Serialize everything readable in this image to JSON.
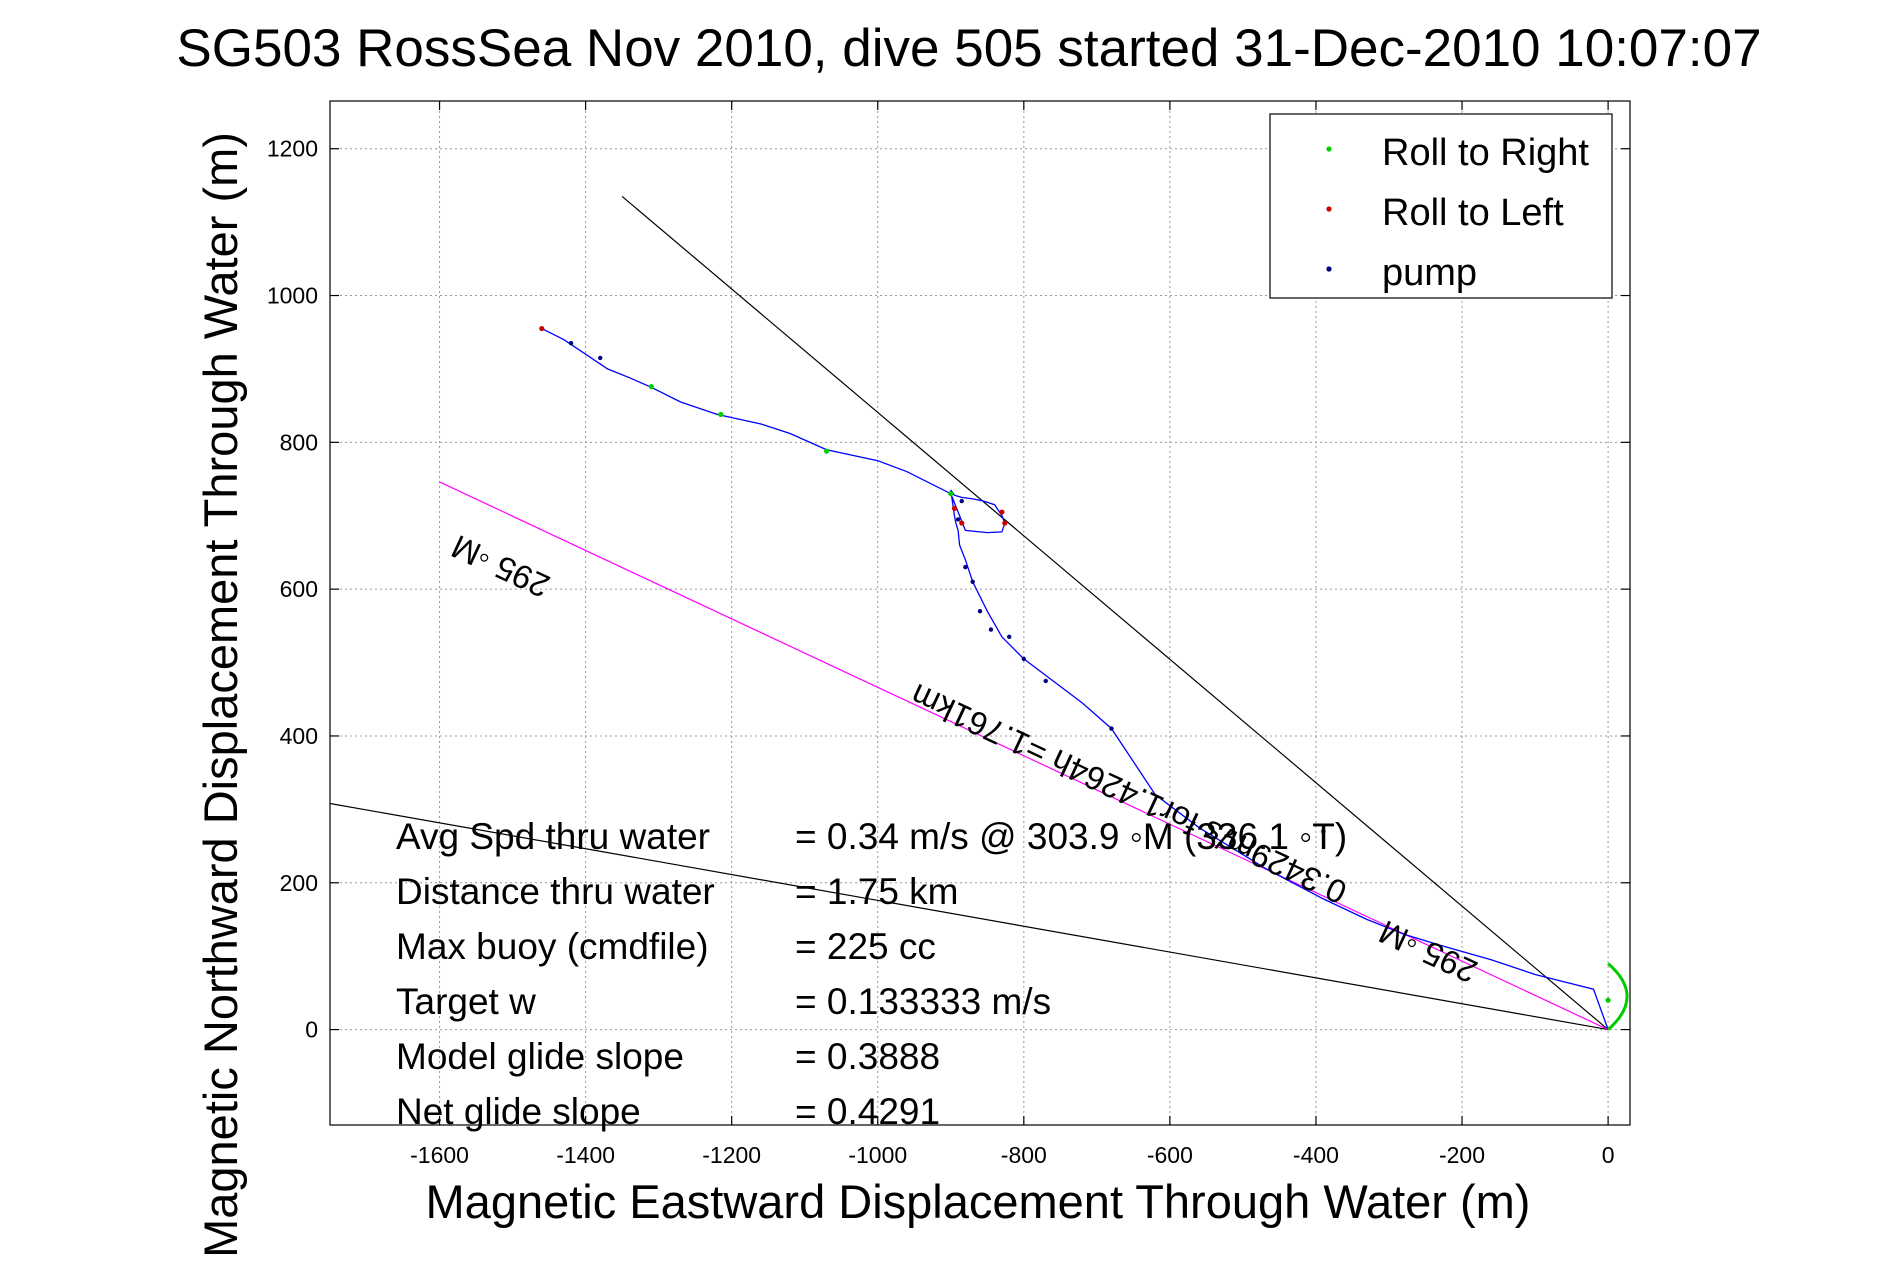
{
  "chart_data": {
    "type": "line",
    "title": "SG503 RossSea Nov 2010, dive 505 started 31-Dec-2010 10:07:07",
    "xlabel": "Magnetic Eastward Displacement Through Water (m)",
    "ylabel": "Magnetic Northward Displacement Through Water (m)",
    "xlim": [
      -1750,
      30
    ],
    "ylim": [
      -130,
      1265
    ],
    "xticks": [
      -1600,
      -1400,
      -1200,
      -1000,
      -800,
      -600,
      -400,
      -200,
      0
    ],
    "yticks": [
      0,
      200,
      400,
      600,
      800,
      1000,
      1200
    ],
    "grid": true,
    "legend_position": "top-right",
    "legend": [
      {
        "label": "Roll to Right",
        "color": "#00cc00"
      },
      {
        "label": "Roll to Left",
        "color": "#cc0000"
      },
      {
        "label": "pump",
        "color": "#000080"
      }
    ],
    "track": {
      "color": "#0000ff",
      "x": [
        0,
        -20,
        -60,
        -100,
        -160,
        -230,
        -280,
        -330,
        -390,
        -470,
        -560,
        -620,
        -680,
        -720,
        -760,
        -800,
        -830,
        -850,
        -870,
        -880,
        -888,
        -890,
        -893,
        -895,
        -900,
        -895,
        -885,
        -870,
        -855,
        -840,
        -830,
        -826,
        -830,
        -850,
        -880,
        -900,
        -960,
        -1000,
        -1070,
        -1120,
        -1160,
        -1220,
        -1270,
        -1310,
        -1340,
        -1370,
        -1400,
        -1430,
        -1460
      ],
      "y": [
        0,
        55,
        65,
        75,
        95,
        115,
        130,
        150,
        178,
        220,
        275,
        320,
        410,
        445,
        475,
        505,
        535,
        570,
        610,
        640,
        660,
        680,
        690,
        700,
        735,
        728,
        725,
        723,
        720,
        715,
        700,
        690,
        678,
        677,
        680,
        730,
        760,
        775,
        790,
        812,
        825,
        838,
        855,
        875,
        888,
        900,
        920,
        940,
        955
      ]
    },
    "roll_right_points": {
      "x": [
        0,
        -390,
        -1070,
        -1215,
        -1310,
        -900
      ],
      "y": [
        40,
        270,
        788,
        838,
        876,
        730
      ]
    },
    "roll_left_points": {
      "x": [
        -1460,
        -895,
        -885,
        -830,
        -826
      ],
      "y": [
        955,
        710,
        690,
        705,
        690
      ]
    },
    "pump_points": {
      "x": [
        -1420,
        -1380,
        -885,
        -880,
        -870,
        -860,
        -845,
        -820,
        -800,
        -770,
        -680,
        -890
      ],
      "y": [
        935,
        915,
        720,
        630,
        610,
        570,
        545,
        535,
        505,
        475,
        410,
        695
      ]
    },
    "reference_lines": [
      {
        "color": "#000000",
        "x": [
          0,
          -1350
        ],
        "y": [
          0,
          1135
        ]
      },
      {
        "color": "#000000",
        "x": [
          0,
          -1750
        ],
        "y": [
          0,
          308
        ]
      },
      {
        "color": "#ff00ff",
        "x": [
          0,
          -1600
        ],
        "y": [
          0,
          746
        ]
      }
    ],
    "annotations": [
      {
        "text": "295 ◦M",
        "x": -1510,
        "y": 645,
        "rotation_deg": 205
      },
      {
        "text": "295 ◦M",
        "x": -240,
        "y": 120,
        "rotation_deg": 205
      },
      {
        "text": "0.3429m/s for1.4264h =1.761km",
        "x": -650,
        "y": 335,
        "rotation_deg": 205
      }
    ],
    "stats": [
      {
        "label": "Avg Spd thru water",
        "value": "=  0.34 m/s @ 303.9 ◦M (336.1 ◦T)"
      },
      {
        "label": "Distance thru water",
        "value": "=  1.75 km"
      },
      {
        "label": "Max buoy (cmdfile)",
        "value": "= 225 cc"
      },
      {
        "label": "Target w",
        "value": "= 0.133333 m/s"
      },
      {
        "label": "Model glide slope",
        "value": "= 0.3888"
      },
      {
        "label": "Net glide slope",
        "value": "= 0.4291"
      }
    ]
  }
}
